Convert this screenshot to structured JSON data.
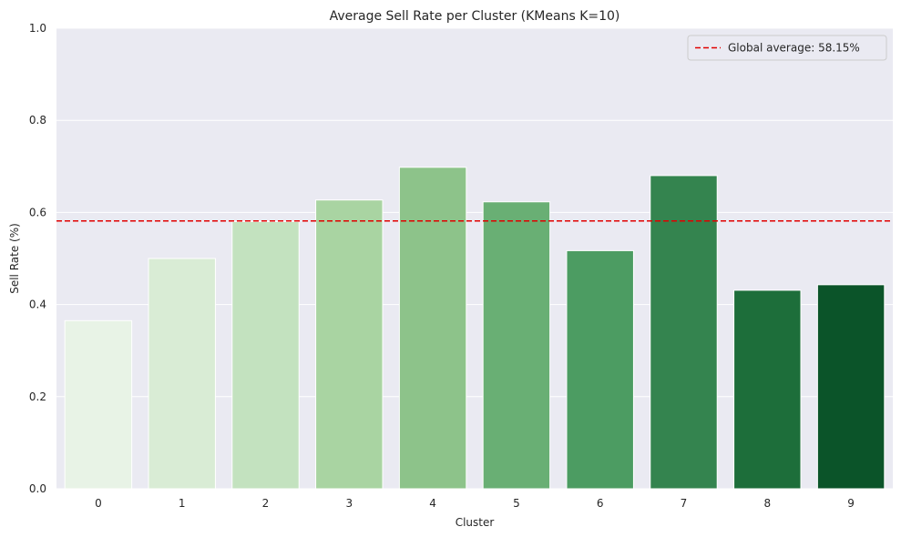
{
  "chart_data": {
    "type": "bar",
    "title": "Average Sell Rate per Cluster (KMeans K=10)",
    "xlabel": "Cluster",
    "ylabel": "Sell Rate (%)",
    "categories": [
      "0",
      "1",
      "2",
      "3",
      "4",
      "5",
      "6",
      "7",
      "8",
      "9"
    ],
    "values": [
      0.365,
      0.5,
      0.58,
      0.627,
      0.698,
      0.623,
      0.517,
      0.68,
      0.431,
      0.443
    ],
    "ylim": [
      0,
      1.0
    ],
    "yticks": [
      "0.0",
      "0.2",
      "0.4",
      "0.6",
      "0.8",
      "1.0"
    ],
    "bar_colors": [
      "#e8f3e6",
      "#d9ecd5",
      "#c3e2bf",
      "#a9d4a2",
      "#8dc38a",
      "#69af74",
      "#4c9c62",
      "#34844f",
      "#1d6e3a",
      "#0b5429"
    ],
    "background_color": "#eaeaf2",
    "grid": true,
    "reference_line": {
      "value": 0.5815,
      "label": "Global average: 58.15%",
      "color": "#e00000",
      "style": "dashed"
    },
    "legend": {
      "position": "top-right"
    }
  }
}
